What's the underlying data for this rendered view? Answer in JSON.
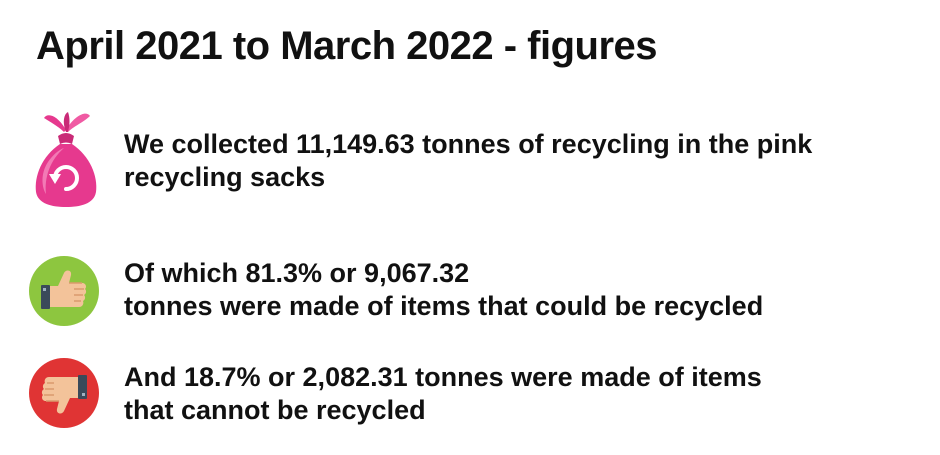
{
  "title": "April 2021 to March 2022 - figures",
  "stats": [
    {
      "icon": "pink-recycling-sack-icon",
      "lines": [
        "We collected 11,149.63 tonnes of recycling in the pink",
        "recycling sacks"
      ]
    },
    {
      "icon": "thumbs-up-icon",
      "lines": [
        "Of which 81.3% or 9,067.32",
        "tonnes were made of items that could be recycled"
      ]
    },
    {
      "icon": "thumbs-down-icon",
      "lines": [
        "And 18.7% or 2,082.31 tonnes were made of items",
        "that cannot be recycled"
      ]
    }
  ],
  "colors": {
    "sack_pink": "#e6398e",
    "thumbs_up_green": "#8dc63f",
    "thumbs_down_red": "#e03434",
    "text": "#111111"
  }
}
